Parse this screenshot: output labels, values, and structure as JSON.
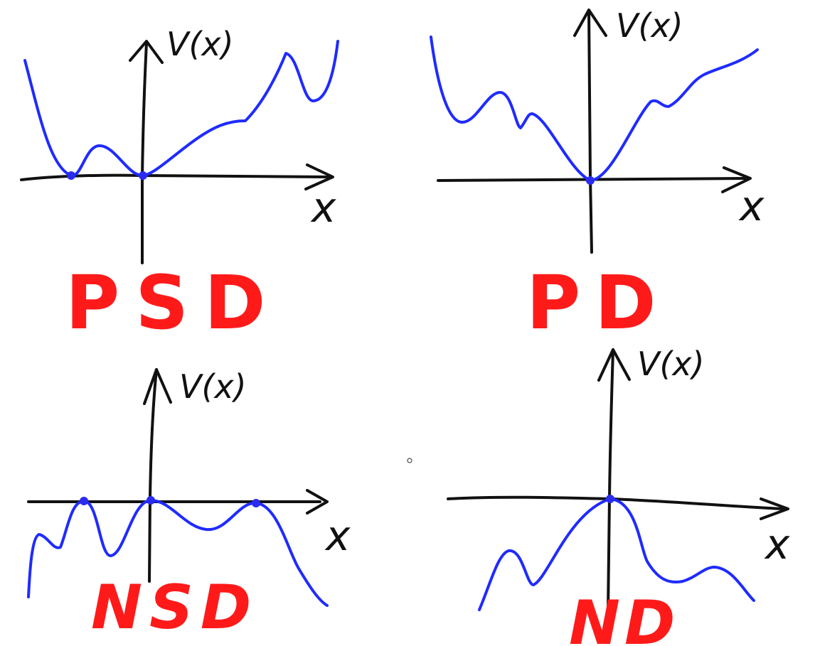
{
  "colors": {
    "ink": "#111111",
    "curve": "#1f2bff",
    "point": "#2b2bf0",
    "label": "#ff1a1a"
  },
  "panels": {
    "psd": {
      "y_label": "V(x)",
      "x_label": "x",
      "classification": "PSD"
    },
    "pd": {
      "y_label": "V(x)",
      "x_label": "x",
      "classification": "PD"
    },
    "nsd": {
      "y_label": "V(x)",
      "x_label": "x",
      "classification": "NSD"
    },
    "nd": {
      "y_label": "V(x)",
      "x_label": "x",
      "classification": "ND"
    }
  }
}
